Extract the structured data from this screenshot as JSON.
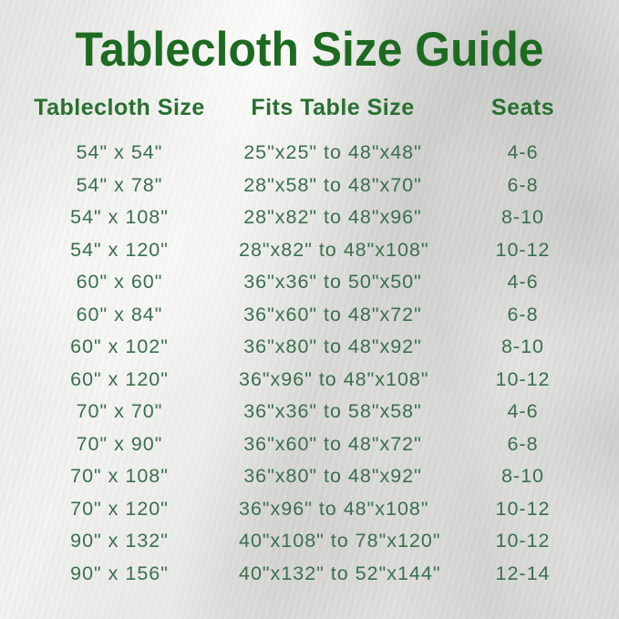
{
  "title": "Tablecloth Size Guide",
  "chart_data": {
    "type": "table",
    "title": "Tablecloth Size Guide",
    "columns": [
      {
        "key": "tablecloth_size",
        "label": "Tablecloth Size"
      },
      {
        "key": "fits_table_size",
        "label": "Fits Table Size"
      },
      {
        "key": "seats",
        "label": "Seats"
      }
    ],
    "rows": [
      {
        "tablecloth_size": "54\" x 54\"",
        "fits_table_size": "25\"x25\" to 48\"x48\"",
        "seats": "4-6"
      },
      {
        "tablecloth_size": "54\" x 78\"",
        "fits_table_size": "28\"x58\" to 48\"x70\"",
        "seats": "6-8"
      },
      {
        "tablecloth_size": "54\" x 108\"",
        "fits_table_size": "28\"x82\" to 48\"x96\"",
        "seats": "8-10"
      },
      {
        "tablecloth_size": "54\" x 120\"",
        "fits_table_size": "28\"x82\" to 48\"x108\"",
        "seats": "10-12"
      },
      {
        "tablecloth_size": "60\" x 60\"",
        "fits_table_size": "36\"x36\" to 50\"x50\"",
        "seats": "4-6"
      },
      {
        "tablecloth_size": "60\" x 84\"",
        "fits_table_size": "36\"x60\" to 48\"x72\"",
        "seats": "6-8"
      },
      {
        "tablecloth_size": "60\" x 102\"",
        "fits_table_size": "36\"x80\" to 48\"x92\"",
        "seats": "8-10"
      },
      {
        "tablecloth_size": "60\" x 120\"",
        "fits_table_size": "36\"x96\" to 48\"x108\"",
        "seats": "10-12"
      },
      {
        "tablecloth_size": "70\" x 70\"",
        "fits_table_size": "36\"x36\" to 58\"x58\"",
        "seats": "4-6"
      },
      {
        "tablecloth_size": "70\" x 90\"",
        "fits_table_size": "36\"x60\" to 48\"x72\"",
        "seats": "6-8"
      },
      {
        "tablecloth_size": "70\" x 108\"",
        "fits_table_size": "36\"x80\" to 48\"x92\"",
        "seats": "8-10"
      },
      {
        "tablecloth_size": "70\" x 120\"",
        "fits_table_size": "36\"x96\" to 48\"x108\"",
        "seats": "10-12"
      },
      {
        "tablecloth_size": "90\" x 132\"",
        "fits_table_size": "40\"x108\" to 78\"x120\"",
        "seats": "10-12"
      },
      {
        "tablecloth_size": "90\" x 156\"",
        "fits_table_size": "40\"x132\" to 52\"x144\"",
        "seats": "12-14"
      }
    ]
  },
  "colors": {
    "title_green": "#1d6b21",
    "header_green": "#27702f",
    "body_green": "#3a6f4e",
    "background_silver": "#dedddb"
  }
}
